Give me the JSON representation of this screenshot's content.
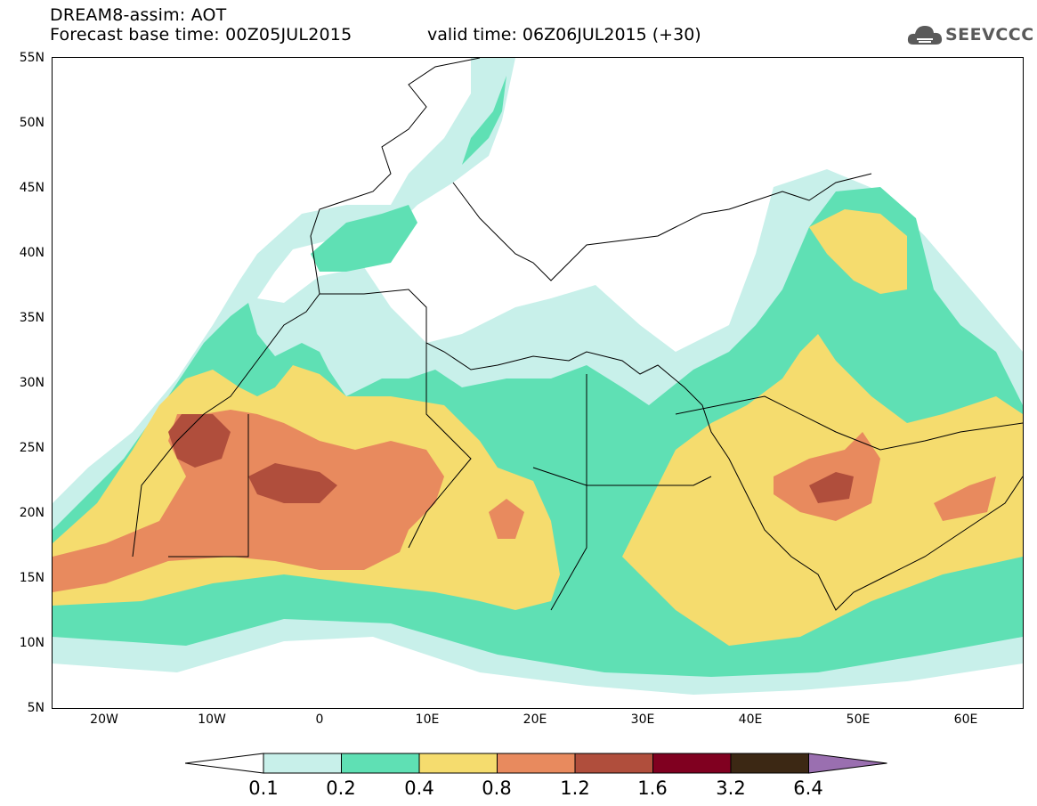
{
  "header": {
    "title_line1": "DREAM8-assim: AOT",
    "title_line2": "Forecast base time: 00Z05JUL2015",
    "valid_time": "valid time: 06Z06JUL2015 (+30)",
    "logo_text": "SEEVCCC"
  },
  "axes": {
    "lat_labels": [
      "55N",
      "50N",
      "45N",
      "40N",
      "35N",
      "30N",
      "25N",
      "20N",
      "15N",
      "10N",
      "5N"
    ],
    "lon_labels": [
      "20W",
      "10W",
      "0",
      "10E",
      "20E",
      "30E",
      "40E",
      "50E",
      "60E"
    ]
  },
  "legend": {
    "thresholds": [
      "0.1",
      "0.2",
      "0.4",
      "0.8",
      "1.2",
      "1.6",
      "3.2",
      "6.4"
    ],
    "colors": [
      "#ffffff",
      "#c8f0ea",
      "#5fe0b4",
      "#f5dc6e",
      "#e88a5e",
      "#b04e3c",
      "#800020",
      "#3c2814",
      "#9a6fb0"
    ]
  },
  "map_data": {
    "variable": "AOT",
    "region": "North Africa, Middle East, Mediterranean",
    "lat_range": [
      5,
      55
    ],
    "lon_range": [
      -25,
      65
    ]
  }
}
